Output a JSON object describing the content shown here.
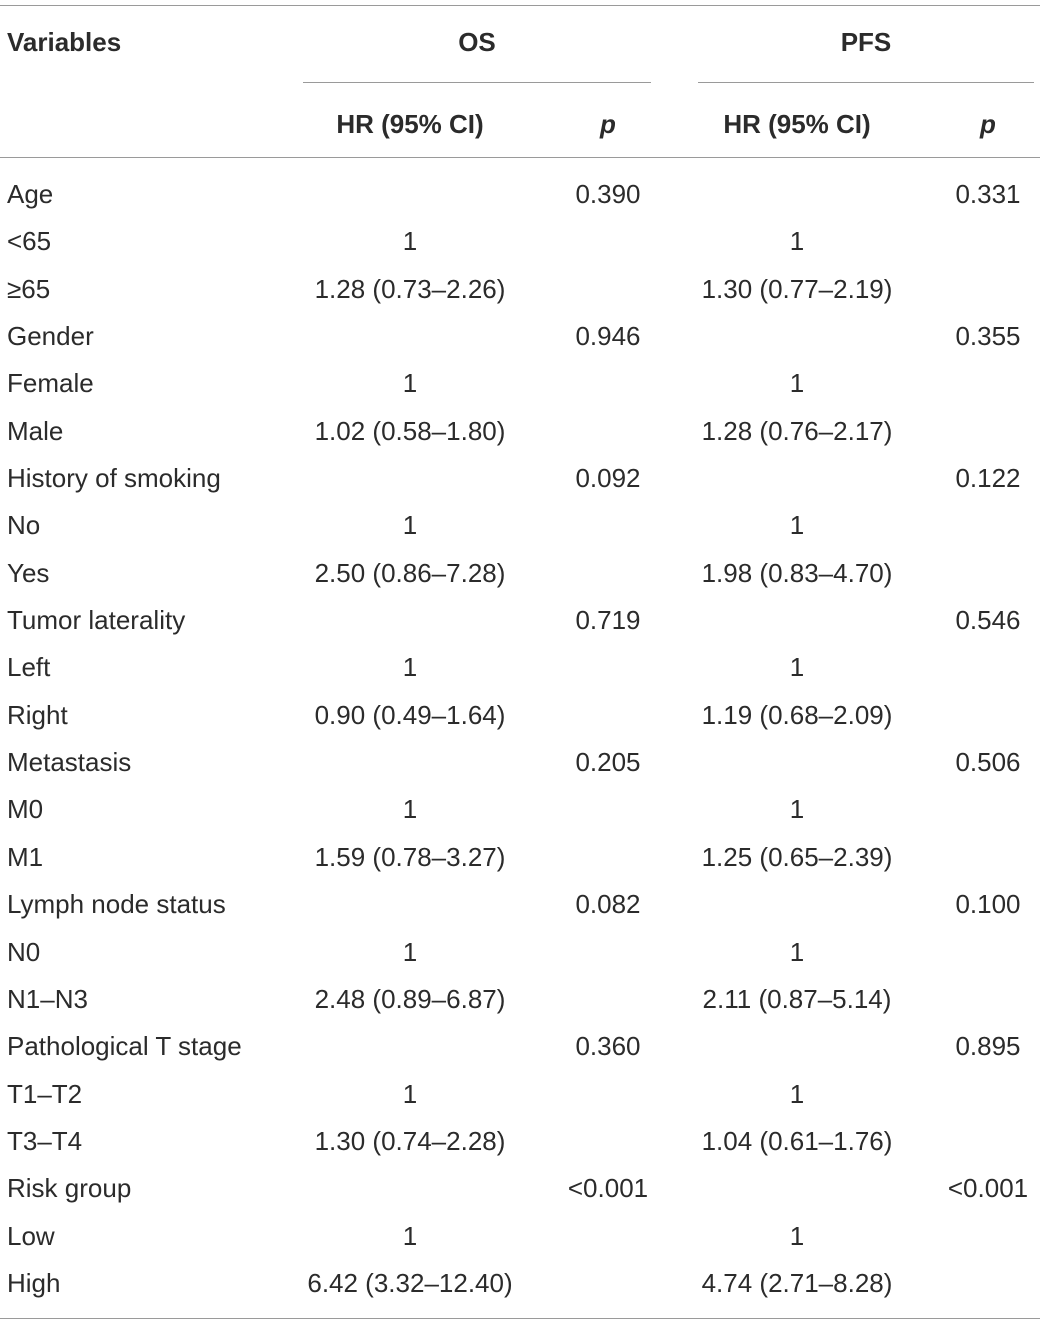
{
  "table": {
    "headers": {
      "variables": "Variables",
      "os": "OS",
      "pfs": "PFS",
      "hr_os": "HR (95% CI)",
      "p_os": "p",
      "hr_pfs": "HR (95% CI)",
      "p_pfs": "p"
    },
    "rows": [
      {
        "variable": "Age",
        "os_hr": "",
        "os_p": "0.390",
        "pfs_hr": "",
        "pfs_p": "0.331"
      },
      {
        "variable": "<65",
        "os_hr": "1",
        "os_p": "",
        "pfs_hr": "1",
        "pfs_p": ""
      },
      {
        "variable": "≥65",
        "os_hr": "1.28 (0.73–2.26)",
        "os_p": "",
        "pfs_hr": "1.30 (0.77–2.19)",
        "pfs_p": ""
      },
      {
        "variable": "Gender",
        "os_hr": "",
        "os_p": "0.946",
        "pfs_hr": "",
        "pfs_p": "0.355"
      },
      {
        "variable": "Female",
        "os_hr": "1",
        "os_p": "",
        "pfs_hr": "1",
        "pfs_p": ""
      },
      {
        "variable": "Male",
        "os_hr": "1.02 (0.58–1.80)",
        "os_p": "",
        "pfs_hr": "1.28 (0.76–2.17)",
        "pfs_p": ""
      },
      {
        "variable": "History of smoking",
        "os_hr": "",
        "os_p": "0.092",
        "pfs_hr": "",
        "pfs_p": "0.122"
      },
      {
        "variable": "No",
        "os_hr": "1",
        "os_p": "",
        "pfs_hr": "1",
        "pfs_p": ""
      },
      {
        "variable": "Yes",
        "os_hr": "2.50 (0.86–7.28)",
        "os_p": "",
        "pfs_hr": "1.98 (0.83–4.70)",
        "pfs_p": ""
      },
      {
        "variable": "Tumor laterality",
        "os_hr": "",
        "os_p": "0.719",
        "pfs_hr": "",
        "pfs_p": "0.546"
      },
      {
        "variable": "Left",
        "os_hr": "1",
        "os_p": "",
        "pfs_hr": "1",
        "pfs_p": ""
      },
      {
        "variable": "Right",
        "os_hr": "0.90 (0.49–1.64)",
        "os_p": "",
        "pfs_hr": "1.19 (0.68–2.09)",
        "pfs_p": ""
      },
      {
        "variable": "Metastasis",
        "os_hr": "",
        "os_p": "0.205",
        "pfs_hr": "",
        "pfs_p": "0.506"
      },
      {
        "variable": "M0",
        "os_hr": "1",
        "os_p": "",
        "pfs_hr": "1",
        "pfs_p": ""
      },
      {
        "variable": "M1",
        "os_hr": "1.59 (0.78–3.27)",
        "os_p": "",
        "pfs_hr": "1.25 (0.65–2.39)",
        "pfs_p": ""
      },
      {
        "variable": "Lymph node status",
        "os_hr": "",
        "os_p": "0.082",
        "pfs_hr": "",
        "pfs_p": "0.100"
      },
      {
        "variable": "N0",
        "os_hr": "1",
        "os_p": "",
        "pfs_hr": "1",
        "pfs_p": ""
      },
      {
        "variable": "N1–N3",
        "os_hr": "2.48 (0.89–6.87)",
        "os_p": "",
        "pfs_hr": "2.11 (0.87–5.14)",
        "pfs_p": ""
      },
      {
        "variable": "Pathological T stage",
        "os_hr": "",
        "os_p": "0.360",
        "pfs_hr": "",
        "pfs_p": "0.895"
      },
      {
        "variable": "T1–T2",
        "os_hr": "1",
        "os_p": "",
        "pfs_hr": "1",
        "pfs_p": ""
      },
      {
        "variable": "T3–T4",
        "os_hr": "1.30 (0.74–2.28)",
        "os_p": "",
        "pfs_hr": "1.04 (0.61–1.76)",
        "pfs_p": ""
      },
      {
        "variable": "Risk group",
        "os_hr": "",
        "os_p": "<0.001",
        "pfs_hr": "",
        "pfs_p": "<0.001"
      },
      {
        "variable": "Low",
        "os_hr": "1",
        "os_p": "",
        "pfs_hr": "1",
        "pfs_p": ""
      },
      {
        "variable": "High",
        "os_hr": "6.42 (3.32–12.40)",
        "os_p": "",
        "pfs_hr": "4.74 (2.71–8.28)",
        "pfs_p": ""
      }
    ]
  }
}
